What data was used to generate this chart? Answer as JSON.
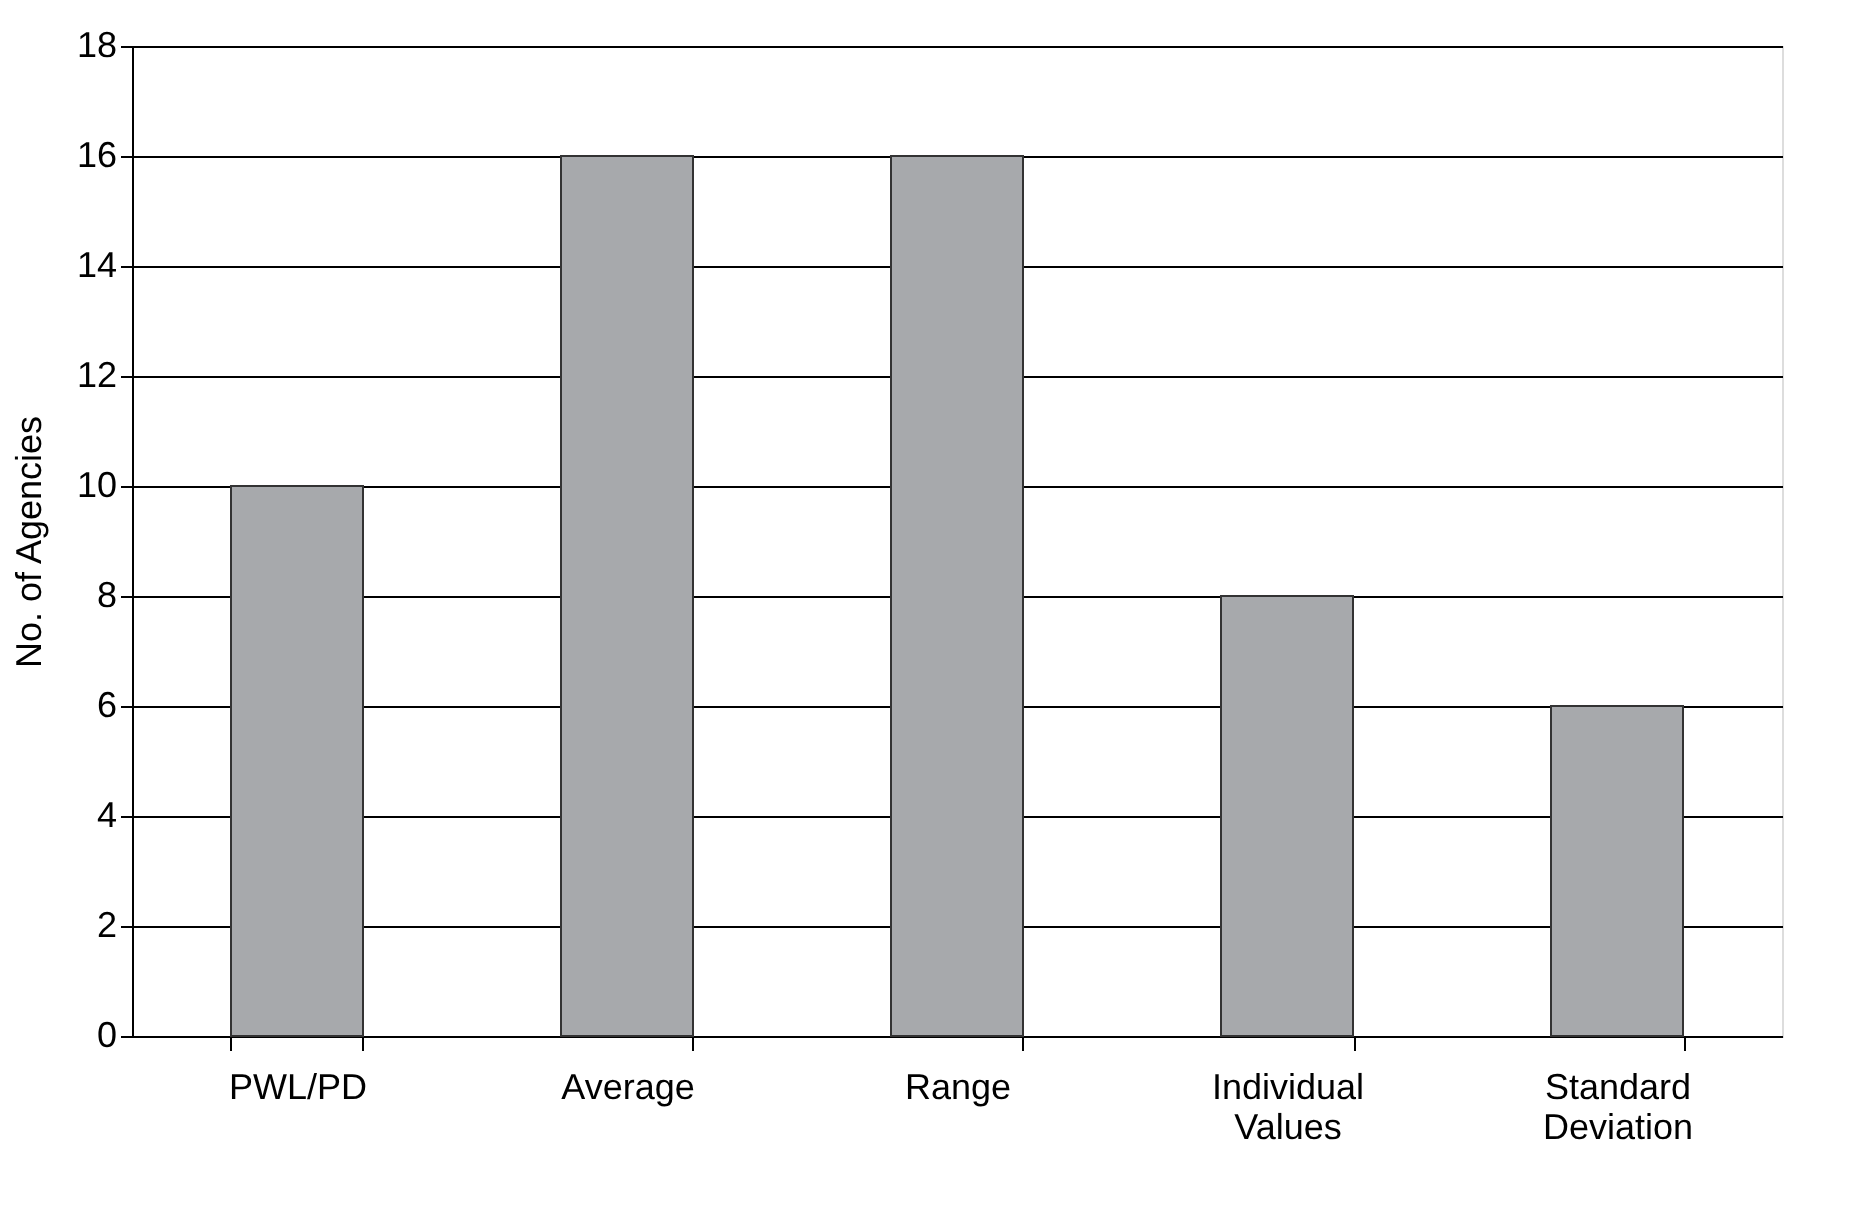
{
  "chart_data": {
    "type": "bar",
    "ylabel": "No. of Agencies",
    "categories": [
      "PWL/PD",
      "Average",
      "Range",
      "Individual Values",
      "Standard Deviation"
    ],
    "values": [
      10,
      16,
      16,
      8,
      6
    ],
    "color": "#a7a9ac",
    "ylim": [
      0,
      18
    ],
    "yticks": [
      0,
      2,
      4,
      6,
      8,
      10,
      12,
      14,
      16,
      18
    ],
    "grid": "y"
  }
}
